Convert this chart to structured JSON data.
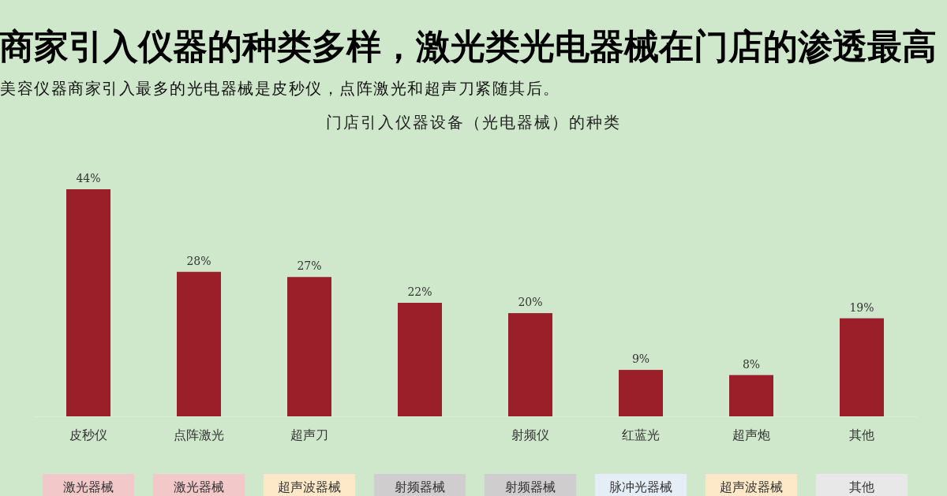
{
  "chart_data": {
    "type": "bar",
    "title": "商家引入仪器的种类多样，激光类光电器械在门店的渗透最高",
    "subtitle": "美容仪器商家引入最多的光电器械是皮秒仪，点阵激光和超声刀紧随其后。",
    "categories": [
      "皮秒仪",
      "点阵激光",
      "超声刀",
      null,
      "射频仪",
      "红蓝光",
      "超声炮",
      "其他"
    ],
    "values": [
      44,
      28,
      27,
      22,
      20,
      9,
      8,
      19
    ],
    "value_labels": [
      "44%",
      "28%",
      "27%",
      "22%",
      "20%",
      "9%",
      "8%",
      "19%"
    ],
    "color": "#9b1f28",
    "annotations": [
      "门店引入仪器设备（光电器械）的种类",
      "激光器械",
      "激光器械",
      "超声波器械",
      "射频器械",
      "射频器械",
      "脉冲光器械",
      "超声波器械",
      "其他"
    ]
  }
}
